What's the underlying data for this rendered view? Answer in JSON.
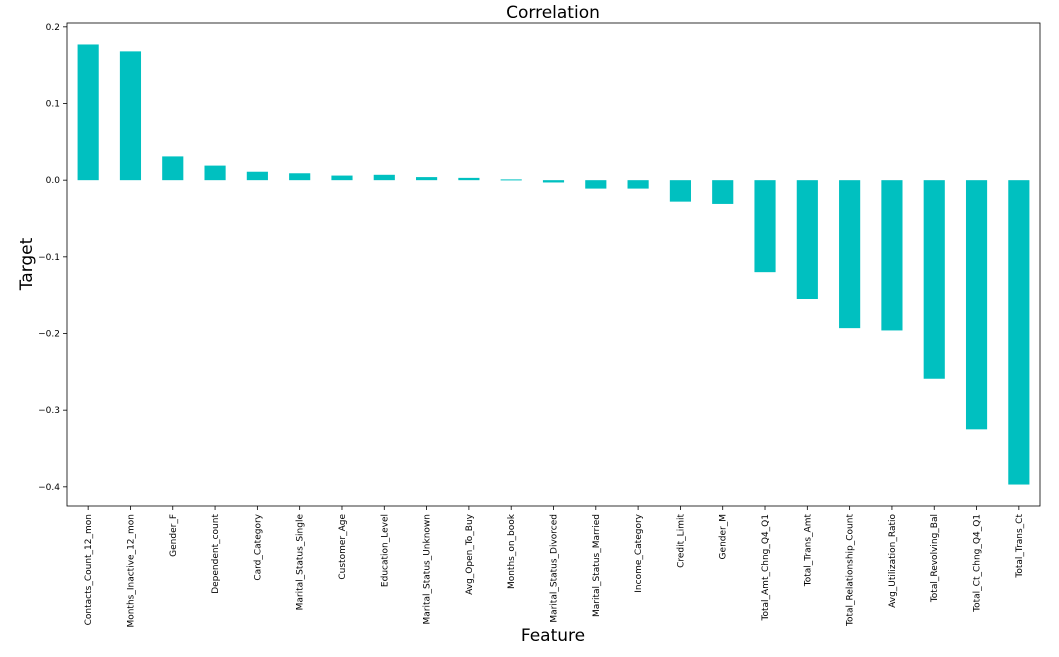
{
  "chart_data": {
    "type": "bar",
    "title": "Correlation",
    "xlabel": "Feature",
    "ylabel": "Target",
    "ylim": [
      -0.425,
      0.205
    ],
    "yticks": [
      0.2,
      0.1,
      0.0,
      -0.1,
      -0.2,
      -0.3,
      -0.4
    ],
    "ytick_labels": [
      "0.2",
      "0.1",
      "0.0",
      "−0.1",
      "−0.2",
      "−0.3",
      "−0.4"
    ],
    "grid": false,
    "bar_color": "#00c0c0",
    "categories": [
      "Contacts_Count_12_mon",
      "Months_Inactive_12_mon",
      "Gender_F",
      "Dependent_count",
      "Card_Category",
      "Marital_Status_Single",
      "Customer_Age",
      "Education_Level",
      "Marital_Status_Unknown",
      "Avg_Open_To_Buy",
      "Months_on_book",
      "Marital_Status_Divorced",
      "Marital_Status_Married",
      "Income_Category",
      "Credit_Limit",
      "Gender_M",
      "Total_Amt_Chng_Q4_Q1",
      "Total_Trans_Amt",
      "Total_Relationship_Count",
      "Avg_Utilization_Ratio",
      "Total_Revolving_Bal",
      "Total_Ct_Chng_Q4_Q1",
      "Total_Trans_Ct"
    ],
    "values": [
      0.177,
      0.168,
      0.031,
      0.019,
      0.011,
      0.009,
      0.006,
      0.007,
      0.004,
      0.003,
      0.001,
      -0.003,
      -0.011,
      -0.011,
      -0.028,
      -0.031,
      -0.12,
      -0.155,
      -0.193,
      -0.196,
      -0.259,
      -0.325,
      -0.397
    ]
  }
}
